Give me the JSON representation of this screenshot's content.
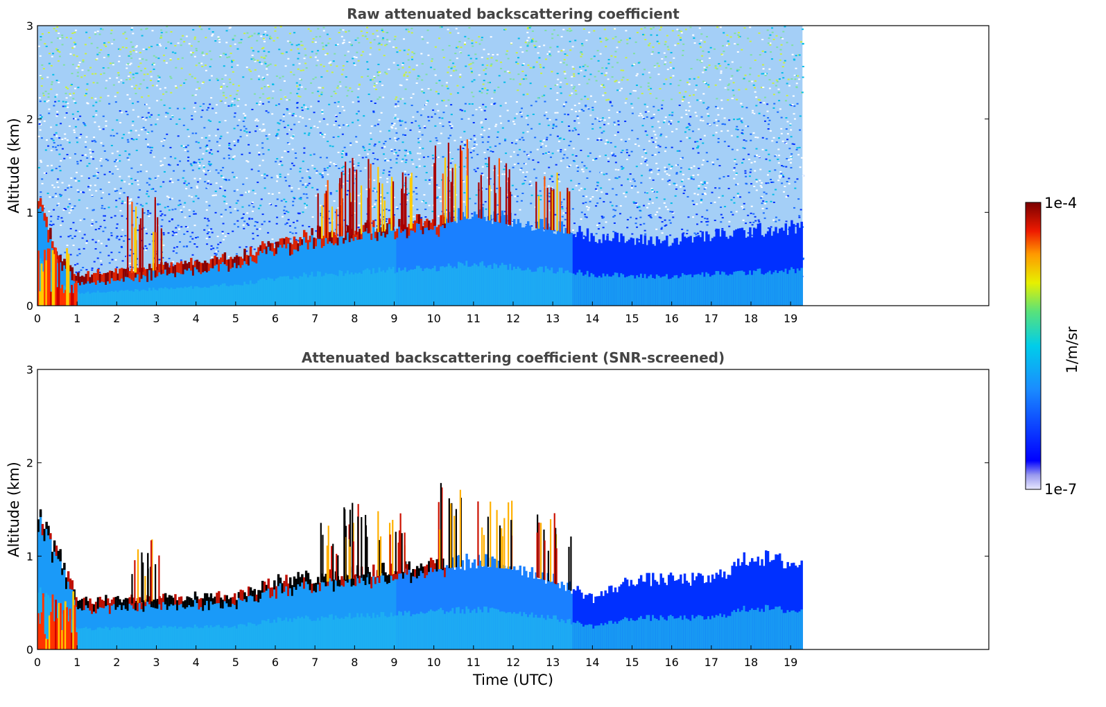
{
  "chart_data": [
    {
      "type": "heatmap",
      "title": "Raw attenuated backscattering coefficient",
      "xlabel": "",
      "ylabel": "Altitude (km)",
      "xlim": [
        0,
        24
      ],
      "ylim": [
        0,
        3
      ],
      "x_ticks": [
        "0",
        "1",
        "2",
        "3",
        "4",
        "5",
        "6",
        "7",
        "8",
        "9",
        "10",
        "11",
        "12",
        "13",
        "14",
        "15",
        "16",
        "17",
        "18",
        "19"
      ],
      "y_ticks": [
        "0",
        "1",
        "2",
        "3"
      ],
      "data_extent_x": [
        0,
        19.3
      ],
      "screened": false,
      "aerosol_layer_top_km": [
        [
          0.0,
          1.1
        ],
        [
          0.5,
          0.5
        ],
        [
          1.0,
          0.3
        ],
        [
          2.0,
          0.35
        ],
        [
          3.0,
          0.4
        ],
        [
          4.0,
          0.45
        ],
        [
          5.0,
          0.5
        ],
        [
          6.0,
          0.65
        ],
        [
          7.0,
          0.75
        ],
        [
          8.0,
          0.8
        ],
        [
          9.0,
          0.85
        ],
        [
          10.0,
          0.9
        ],
        [
          11.0,
          1.0
        ],
        [
          12.0,
          0.9
        ],
        [
          13.0,
          0.85
        ],
        [
          14.0,
          0.75
        ],
        [
          15.0,
          0.7
        ],
        [
          16.0,
          0.7
        ],
        [
          17.0,
          0.75
        ],
        [
          18.0,
          0.8
        ],
        [
          19.3,
          0.85
        ]
      ],
      "cloud_plumes": [
        {
          "x": 2.7,
          "top": 1.2
        },
        {
          "x": 7.5,
          "top": 1.4
        },
        {
          "x": 8.0,
          "top": 1.6
        },
        {
          "x": 9.0,
          "top": 1.5
        },
        {
          "x": 10.4,
          "top": 1.9
        },
        {
          "x": 11.5,
          "top": 1.6
        },
        {
          "x": 13.0,
          "top": 1.5
        }
      ]
    },
    {
      "type": "heatmap",
      "title": "Attenuated backscattering coefficient (SNR-screened)",
      "xlabel": "Time (UTC)",
      "ylabel": "Altitude (km)",
      "xlim": [
        0,
        24
      ],
      "ylim": [
        0,
        3
      ],
      "x_ticks": [
        "0",
        "1",
        "2",
        "3",
        "4",
        "5",
        "6",
        "7",
        "8",
        "9",
        "10",
        "11",
        "12",
        "13",
        "14",
        "15",
        "16",
        "17",
        "18",
        "19"
      ],
      "y_ticks": [
        "0",
        "1",
        "2",
        "3"
      ],
      "data_extent_x": [
        0,
        19.3
      ],
      "screened": true,
      "signal_top_km": [
        [
          0.0,
          1.4
        ],
        [
          0.5,
          1.0
        ],
        [
          1.0,
          0.5
        ],
        [
          2.0,
          0.5
        ],
        [
          3.0,
          0.55
        ],
        [
          4.0,
          0.55
        ],
        [
          5.0,
          0.55
        ],
        [
          6.0,
          0.7
        ],
        [
          7.0,
          0.75
        ],
        [
          8.0,
          0.8
        ],
        [
          9.0,
          0.85
        ],
        [
          10.0,
          0.9
        ],
        [
          11.0,
          0.95
        ],
        [
          12.0,
          0.9
        ],
        [
          13.0,
          0.75
        ],
        [
          14.0,
          0.55
        ],
        [
          15.0,
          0.75
        ],
        [
          16.0,
          0.75
        ],
        [
          17.0,
          0.75
        ],
        [
          18.0,
          1.0
        ],
        [
          19.3,
          0.9
        ]
      ]
    }
  ],
  "colorbar": {
    "label": "1/m/sr",
    "max_label": "1e-4",
    "min_label": "1e-7",
    "colormap": "jet"
  },
  "colors": {
    "title": "#444444",
    "dark_blue": "#0000ff",
    "light_blue": "#1e90ff",
    "cyan": "#00ccee",
    "yellow": "#ffee00",
    "red": "#dd0000",
    "dark_red": "#800000"
  }
}
